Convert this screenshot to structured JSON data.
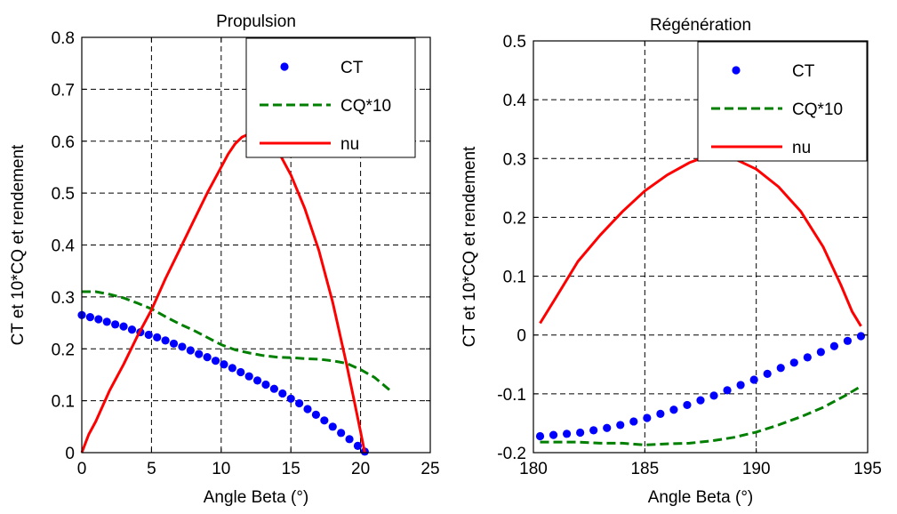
{
  "colors": {
    "ct": "#0000ff",
    "cq": "#007f00",
    "nu": "#ff0000",
    "grid": "#000000",
    "axes": "#000000",
    "background": "#ffffff"
  },
  "chart_data": [
    {
      "type": "line",
      "title": "Propulsion",
      "xlabel": "Angle Beta (°)",
      "ylabel": "CT et 10*CQ et rendement",
      "xlim": [
        0,
        25
      ],
      "ylim": [
        0,
        0.8
      ],
      "xticks": [
        0,
        5,
        10,
        15,
        20,
        25
      ],
      "yticks": [
        0,
        0.1,
        0.2,
        0.3,
        0.4,
        0.5,
        0.6,
        0.7,
        0.8
      ],
      "xtick_labels": [
        "0",
        "5",
        "10",
        "15",
        "20",
        "25"
      ],
      "ytick_labels": [
        "0",
        "0.1",
        "0.2",
        "0.3",
        "0.4",
        "0.5",
        "0.6",
        "0.7",
        "0.8"
      ],
      "grid": true,
      "legend_position": "top-right",
      "series": [
        {
          "name": "CT",
          "style": "dots",
          "color": "#0000ff",
          "x": [
            0,
            0.6,
            1.2,
            1.8,
            2.4,
            3.0,
            3.6,
            4.2,
            4.8,
            5.4,
            6.0,
            6.6,
            7.2,
            7.8,
            8.4,
            9.0,
            9.6,
            10.2,
            10.8,
            11.4,
            12.0,
            12.6,
            13.2,
            13.8,
            14.4,
            15.0,
            15.6,
            16.2,
            16.8,
            17.4,
            18.0,
            18.6,
            19.2,
            19.8,
            20.3
          ],
          "y": [
            0.265,
            0.261,
            0.257,
            0.252,
            0.247,
            0.243,
            0.237,
            0.232,
            0.227,
            0.222,
            0.216,
            0.21,
            0.204,
            0.197,
            0.19,
            0.184,
            0.177,
            0.17,
            0.163,
            0.155,
            0.147,
            0.139,
            0.131,
            0.123,
            0.114,
            0.104,
            0.095,
            0.084,
            0.073,
            0.062,
            0.05,
            0.038,
            0.026,
            0.013,
            0.002
          ]
        },
        {
          "name": "CQ*10",
          "style": "dashed",
          "color": "#007f00",
          "x": [
            0,
            1,
            2,
            3,
            4,
            5,
            6,
            7,
            8,
            9,
            10,
            11,
            12,
            13,
            14,
            15,
            16,
            17,
            18,
            19,
            20,
            21,
            22.2
          ],
          "y": [
            0.31,
            0.31,
            0.305,
            0.298,
            0.288,
            0.277,
            0.262,
            0.248,
            0.236,
            0.222,
            0.208,
            0.198,
            0.192,
            0.187,
            0.184,
            0.183,
            0.181,
            0.18,
            0.177,
            0.172,
            0.16,
            0.145,
            0.118
          ]
        },
        {
          "name": "nu",
          "style": "solid",
          "color": "#ff0000",
          "x": [
            0,
            0.5,
            1,
            2,
            3,
            4,
            5,
            6,
            7,
            8,
            9,
            10,
            10.5,
            11,
            11.5,
            12,
            12.5,
            13,
            13.5,
            14,
            15,
            16,
            17,
            18,
            19,
            19.5,
            20,
            20.3
          ],
          "y": [
            0,
            0.035,
            0.06,
            0.12,
            0.17,
            0.225,
            0.275,
            0.335,
            0.39,
            0.445,
            0.5,
            0.55,
            0.575,
            0.595,
            0.608,
            0.614,
            0.615,
            0.612,
            0.605,
            0.585,
            0.535,
            0.47,
            0.39,
            0.29,
            0.17,
            0.105,
            0.04,
            0
          ]
        }
      ]
    },
    {
      "type": "line",
      "title": "Régénération",
      "xlabel": "Angle Beta (°)",
      "ylabel": "CT et 10*CQ et rendement",
      "xlim": [
        180,
        195
      ],
      "ylim": [
        -0.2,
        0.5
      ],
      "xticks": [
        180,
        185,
        190,
        195
      ],
      "yticks": [
        -0.2,
        -0.1,
        0,
        0.1,
        0.2,
        0.3,
        0.4,
        0.5
      ],
      "xtick_labels": [
        "180",
        "185",
        "190",
        "195"
      ],
      "ytick_labels": [
        "-0.2",
        "-0.1",
        "0",
        "0.1",
        "0.2",
        "0.3",
        "0.4",
        "0.5"
      ],
      "grid": true,
      "legend_position": "top-right",
      "series": [
        {
          "name": "CT",
          "style": "dots",
          "color": "#0000ff",
          "x": [
            180.3,
            180.9,
            181.5,
            182.1,
            182.7,
            183.3,
            183.9,
            184.5,
            185.1,
            185.7,
            186.3,
            186.9,
            187.5,
            188.1,
            188.7,
            189.3,
            189.9,
            190.5,
            191.1,
            191.7,
            192.3,
            192.9,
            193.5,
            194.1,
            194.7
          ],
          "y": [
            -0.172,
            -0.17,
            -0.168,
            -0.166,
            -0.162,
            -0.158,
            -0.153,
            -0.147,
            -0.141,
            -0.134,
            -0.127,
            -0.119,
            -0.111,
            -0.103,
            -0.094,
            -0.085,
            -0.076,
            -0.066,
            -0.056,
            -0.047,
            -0.038,
            -0.029,
            -0.019,
            -0.01,
            -0.002
          ]
        },
        {
          "name": "CQ*10",
          "style": "dashed",
          "color": "#007f00",
          "x": [
            180.3,
            181,
            182,
            183,
            184,
            185,
            186,
            187,
            188,
            189,
            190,
            191,
            192,
            193,
            194,
            194.7
          ],
          "y": [
            -0.182,
            -0.182,
            -0.182,
            -0.184,
            -0.184,
            -0.187,
            -0.185,
            -0.184,
            -0.18,
            -0.174,
            -0.165,
            -0.153,
            -0.139,
            -0.123,
            -0.103,
            -0.087
          ]
        },
        {
          "name": "nu",
          "style": "solid",
          "color": "#ff0000",
          "x": [
            180.3,
            181,
            182,
            183,
            184,
            185,
            186,
            187,
            187.5,
            188,
            188.5,
            189,
            190,
            191,
            192,
            193,
            193.8,
            194.3,
            194.7
          ],
          "y": [
            0.02,
            0.063,
            0.125,
            0.17,
            0.21,
            0.245,
            0.272,
            0.293,
            0.3,
            0.304,
            0.304,
            0.3,
            0.282,
            0.252,
            0.21,
            0.15,
            0.085,
            0.04,
            0.015
          ]
        }
      ]
    }
  ]
}
